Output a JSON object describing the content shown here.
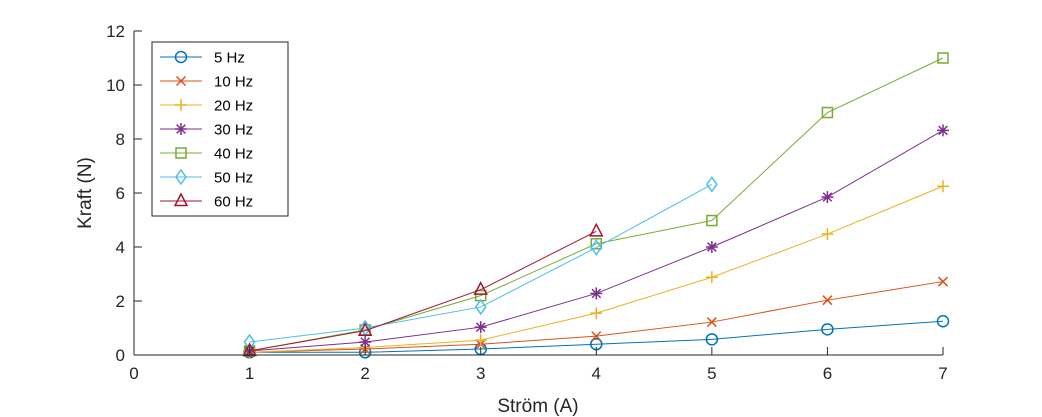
{
  "chart_data": {
    "type": "line",
    "xlabel": "Ström (A)",
    "ylabel": "Kraft (N)",
    "xlim": [
      0,
      7
    ],
    "ylim": [
      0,
      12
    ],
    "xticks": [
      0,
      1,
      2,
      3,
      4,
      5,
      6,
      7
    ],
    "yticks": [
      0,
      2,
      4,
      6,
      8,
      10,
      12
    ],
    "grid": false,
    "legend_position": "top-left",
    "series": [
      {
        "name": "5 Hz",
        "marker": "circle",
        "color": "#0072BD",
        "x": [
          1,
          2,
          3,
          4,
          5,
          6,
          7
        ],
        "y": [
          0.1,
          0.1,
          0.22,
          0.4,
          0.58,
          0.95,
          1.25
        ]
      },
      {
        "name": "10 Hz",
        "marker": "x",
        "color": "#D95319",
        "x": [
          1,
          2,
          3,
          4,
          5,
          6,
          7
        ],
        "y": [
          0.1,
          0.22,
          0.4,
          0.7,
          1.22,
          2.03,
          2.72
        ]
      },
      {
        "name": "20 Hz",
        "marker": "plus",
        "color": "#EDB120",
        "x": [
          1,
          2,
          3,
          4,
          5,
          6,
          7
        ],
        "y": [
          0.1,
          0.28,
          0.55,
          1.55,
          2.88,
          4.48,
          6.25
        ]
      },
      {
        "name": "30 Hz",
        "marker": "asterisk",
        "color": "#7E2F8E",
        "x": [
          1,
          2,
          3,
          4,
          5,
          6,
          7
        ],
        "y": [
          0.15,
          0.48,
          1.03,
          2.28,
          4.0,
          5.85,
          8.32
        ]
      },
      {
        "name": "40 Hz",
        "marker": "square",
        "color": "#77AC30",
        "x": [
          1,
          2,
          3,
          4,
          5,
          6,
          7
        ],
        "y": [
          0.15,
          0.93,
          2.2,
          4.12,
          4.98,
          8.98,
          11.0
        ]
      },
      {
        "name": "50 Hz",
        "marker": "diamond",
        "color": "#4DBEEE",
        "x": [
          1,
          2,
          3,
          4,
          5
        ],
        "y": [
          0.48,
          1.0,
          1.78,
          3.98,
          6.32
        ]
      },
      {
        "name": "60 Hz",
        "marker": "triangle",
        "color": "#A2142F",
        "x": [
          1,
          2,
          3,
          4
        ],
        "y": [
          0.15,
          0.9,
          2.42,
          4.58
        ]
      }
    ]
  }
}
